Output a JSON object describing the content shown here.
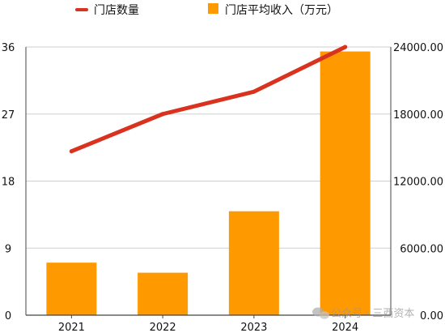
{
  "chart_data": {
    "type": "bar",
    "categories": [
      "2021",
      "2022",
      "2023",
      "2024"
    ],
    "series": [
      {
        "name": "门店平均收入（万元）",
        "type": "bar",
        "axis": "right",
        "color": "#FF9900",
        "values": [
          4700,
          3800,
          9300,
          23600
        ]
      },
      {
        "name": "门店数量",
        "type": "line",
        "axis": "left",
        "color": "#D9321F",
        "values": [
          22,
          27,
          30,
          36
        ]
      }
    ],
    "left_axis": {
      "ylim": [
        0,
        36
      ],
      "ticks": [
        "0",
        "9",
        "18",
        "27",
        "36"
      ]
    },
    "right_axis": {
      "ylim": [
        0,
        24000
      ],
      "ticks": [
        "0.00",
        "6000.00",
        "12000.00",
        "18000.00",
        "24000.00"
      ]
    },
    "grid": true,
    "legend_position": "top",
    "title": "",
    "xlabel": "",
    "ylabel": ""
  },
  "watermark": {
    "label": "公众号 · 三西资本",
    "icon": "wechat-icon"
  }
}
